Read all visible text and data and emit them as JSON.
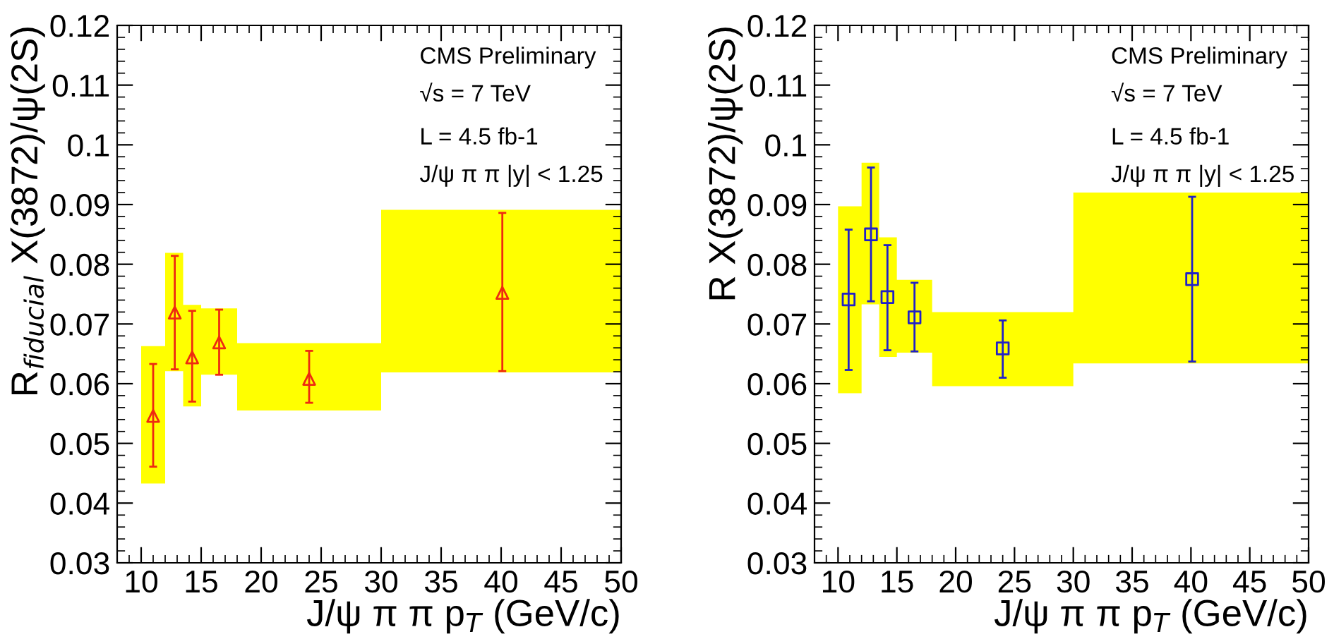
{
  "chart_data": [
    {
      "type": "scatter",
      "ylabel": "R$_{fiducial}$ X(3872)/ψ(2S)",
      "xlabel": "J/ψ π π p$_{T}$ (GeV/c)",
      "xlim": [
        8,
        50
      ],
      "ylim": [
        0.03,
        0.12
      ],
      "xticks": [
        10,
        15,
        20,
        25,
        30,
        35,
        40,
        45,
        50
      ],
      "yticks": [
        0.03,
        0.04,
        0.05,
        0.06,
        0.07,
        0.08,
        0.09,
        0.1,
        0.11,
        0.12
      ],
      "grid": false,
      "annotations": [
        "CMS Preliminary",
        "√s = 7 TeV",
        "L = 4.5 fb-1",
        "J/ψ π π |y| < 1.25"
      ],
      "series": [
        {
          "type": "step",
          "color": "#ffff00",
          "x": [
            10,
            12,
            13.5,
            15,
            18,
            30,
            50
          ],
          "values": [
            null,
            null,
            null,
            null,
            null,
            null,
            null
          ],
          "lower": [
            0.0433,
            0.0621,
            0.0562,
            0.0615,
            0.0555,
            0.0619,
            0.0619
          ],
          "upper": [
            0.0663,
            0.0819,
            0.0732,
            0.0726,
            0.0668,
            0.0891,
            0.0891
          ]
        },
        {
          "color": "#ee2a10",
          "marker": "triangle",
          "x": [
            11,
            12.8,
            14.25,
            16.5,
            24,
            40.1
          ],
          "values": [
            0.0546,
            0.0719,
            0.0644,
            0.0669,
            0.0608,
            0.0752
          ],
          "errors": [
            [
              0.0461,
              0.0633
            ],
            [
              0.0624,
              0.0814
            ],
            [
              0.057,
              0.0722
            ],
            [
              0.0615,
              0.0724
            ],
            [
              0.0568,
              0.0655
            ],
            [
              0.0621,
              0.0886
            ]
          ]
        }
      ]
    },
    {
      "type": "scatter",
      "ylabel": "R X(3872)/ψ(2S)",
      "xlabel": "J/ψ π π p$_{T}$ (GeV/c)",
      "xlim": [
        8,
        50
      ],
      "ylim": [
        0.03,
        0.12
      ],
      "xticks": [
        10,
        15,
        20,
        25,
        30,
        35,
        40,
        45,
        50
      ],
      "yticks": [
        0.03,
        0.04,
        0.05,
        0.06,
        0.07,
        0.08,
        0.09,
        0.1,
        0.11,
        0.12
      ],
      "grid": false,
      "annotations": [
        "CMS Preliminary",
        "√s = 7 TeV",
        "L = 4.5 fb-1",
        "J/ψ π π |y| < 1.25"
      ],
      "series": [
        {
          "type": "step",
          "color": "#ffff00",
          "x": [
            10,
            12,
            13.5,
            15,
            18,
            30,
            50
          ],
          "values": [
            null,
            null,
            null,
            null,
            null,
            null,
            null
          ],
          "lower": [
            0.0584,
            0.0733,
            0.0645,
            0.0652,
            0.0596,
            0.0634,
            0.0634
          ],
          "upper": [
            0.0897,
            0.097,
            0.0845,
            0.0774,
            0.072,
            0.092,
            0.092
          ]
        },
        {
          "color": "#2020c8",
          "marker": "square",
          "x": [
            10.9,
            12.8,
            14.2,
            16.5,
            24,
            40.1
          ],
          "values": [
            0.0741,
            0.085,
            0.0745,
            0.0711,
            0.0659,
            0.0775
          ],
          "errors": [
            [
              0.0623,
              0.0858
            ],
            [
              0.0738,
              0.0962
            ],
            [
              0.0656,
              0.0832
            ],
            [
              0.0654,
              0.0769
            ],
            [
              0.061,
              0.0706
            ],
            [
              0.0637,
              0.0913
            ]
          ]
        }
      ]
    }
  ]
}
